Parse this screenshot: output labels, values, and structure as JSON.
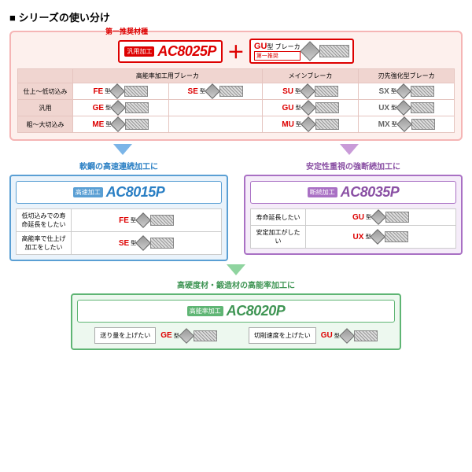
{
  "title": "シリーズの使い分け",
  "rec_label": "第一推奨材種",
  "main": {
    "tag": "汎用加工",
    "grade": "AC8025P",
    "color": "#d00",
    "plus": "＋",
    "cb": {
      "type": "GU",
      "suf": "型 ブレーカ",
      "sub": "第一推奨",
      "dim": "2.05"
    }
  },
  "cols": [
    "高能率加工用ブレーカ",
    "メインブレーカ",
    "刃先強化型ブレーカ"
  ],
  "rows": [
    {
      "label": "仕上～低切込み",
      "cells": [
        {
          "n": "FE",
          "s": "型",
          "c": "#d00",
          "d": "1.40"
        },
        {
          "n": "SE",
          "s": "型",
          "c": "#d00",
          "d": "1.5"
        },
        {
          "n": "SU",
          "s": "型",
          "c": "#d00",
          "d": "1.3"
        },
        {
          "n": "SX",
          "s": "型",
          "c": "#666",
          "d": "1.35"
        }
      ]
    },
    {
      "label": "汎用",
      "cells": [
        {
          "n": "GE",
          "s": "型",
          "c": "#d00",
          "d": "2.0"
        },
        null,
        {
          "n": "GU",
          "s": "型",
          "c": "#d00",
          "d": "2.05"
        },
        {
          "n": "UX",
          "s": "型",
          "c": "#666",
          "d": "2.05"
        }
      ]
    },
    {
      "label": "粗～大切込み",
      "cells": [
        {
          "n": "ME",
          "s": "型",
          "c": "#d00",
          "d": "2.4"
        },
        null,
        {
          "n": "MU",
          "s": "型",
          "c": "#d00",
          "d": "2.0"
        },
        {
          "n": "MX",
          "s": "型",
          "c": "#666",
          "d": "2.05"
        }
      ]
    }
  ],
  "subs": [
    {
      "title": "軟鋼の高速連続加工に",
      "tag": "高速加工",
      "grade": "AC8015P",
      "box": "blue",
      "gn": "gn-blue",
      "tagc": "tag-blue",
      "hdr": "hdr-blue",
      "items": [
        {
          "l": "低切込みでの寿命延長をしたい",
          "n": "FE",
          "s": "型",
          "d": "1.40"
        },
        {
          "l": "高能率で仕上げ加工をしたい",
          "n": "SE",
          "s": "型",
          "d": "1.5"
        }
      ]
    },
    {
      "title": "安定性重視の強断続加工に",
      "tag": "断続加工",
      "grade": "AC8035P",
      "box": "purple",
      "gn": "gn-purple",
      "tagc": "tag-purple",
      "hdr": "hdr-purple",
      "items": [
        {
          "l": "寿命延長したい",
          "n": "GU",
          "s": "型",
          "d": "2.05"
        },
        {
          "l": "安定加工がしたい",
          "n": "UX",
          "s": "型",
          "d": "2.05"
        }
      ]
    }
  ],
  "bottom": {
    "title": "高硬度材・鍛造材の高能率加工に",
    "tag": "高能率加工",
    "grade": "AC8020P",
    "items": [
      {
        "l": "送り量を上げたい",
        "n": "GE",
        "s": "型",
        "d": "2.0"
      },
      {
        "l": "切削速度を上げたい",
        "n": "GU",
        "s": "型",
        "d": "2.05"
      }
    ]
  }
}
